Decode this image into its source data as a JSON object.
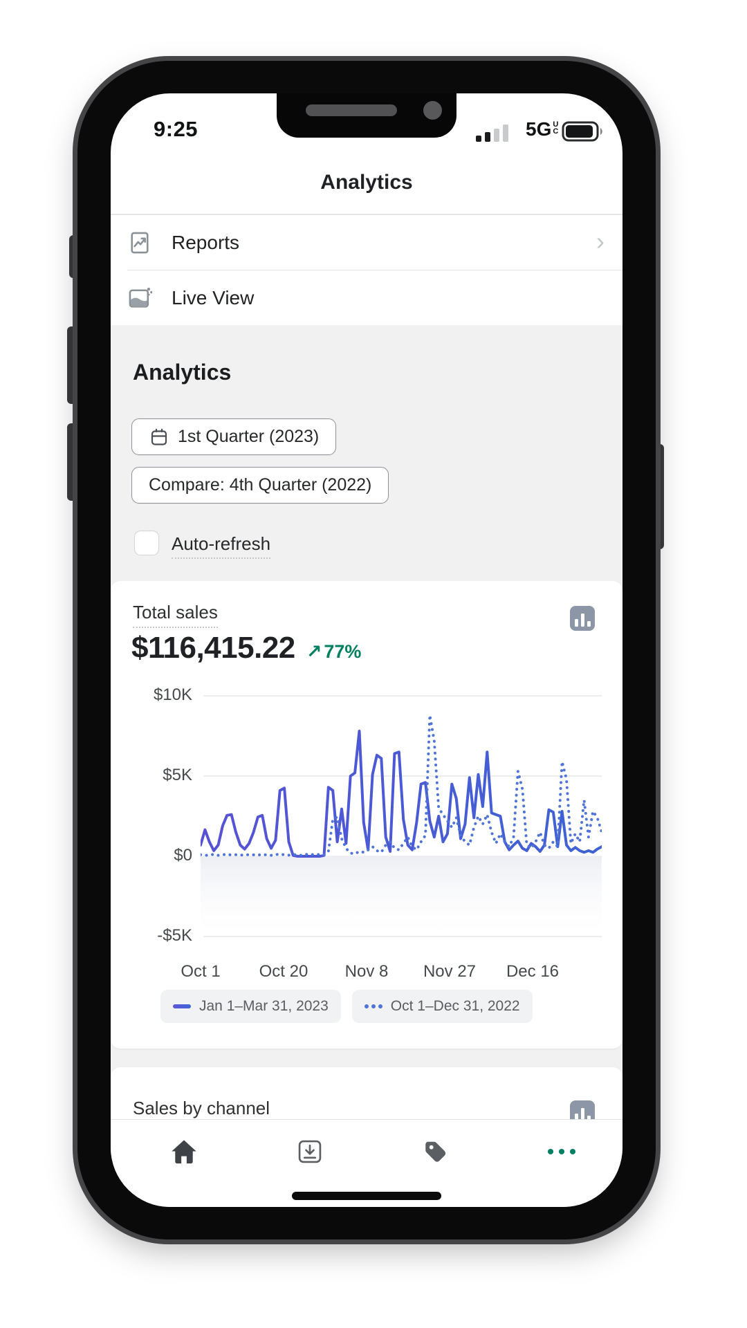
{
  "status_bar": {
    "time": "9:25",
    "network": "5G",
    "network_badge_top": "U",
    "network_badge_bottom": "C"
  },
  "header": {
    "title": "Analytics"
  },
  "menu": {
    "items": [
      {
        "label": "Reports",
        "icon": "reports-icon",
        "has_chevron": true
      },
      {
        "label": "Live View",
        "icon": "live-view-icon",
        "has_chevron": false
      }
    ]
  },
  "analytics_section": {
    "heading": "Analytics",
    "date_range_button": "1st Quarter (2023)",
    "compare_button": "Compare: 4th Quarter (2022)",
    "auto_refresh_label": "Auto-refresh",
    "auto_refresh_checked": false
  },
  "total_sales_card": {
    "title": "Total sales",
    "value": "$116,415.22",
    "change_percent": "77%",
    "change_direction": "up",
    "change_arrow": "↗"
  },
  "chart_data": {
    "type": "line",
    "title": "Total sales",
    "ylim": [
      -5000,
      10000
    ],
    "ytick_labels": [
      "$10K",
      "$5K",
      "$0",
      "-$5K"
    ],
    "ytick_values": [
      10000,
      5000,
      0,
      -5000
    ],
    "xtick_labels": [
      "Oct 1",
      "Oct 20",
      "Nov 8",
      "Nov 27",
      "Dec 16"
    ],
    "xtick_positions": [
      0,
      19,
      38,
      57,
      76
    ],
    "grid": true,
    "legend_position": "bottom",
    "series": [
      {
        "name": "Jan 1–Mar 31, 2023",
        "style": "solid",
        "color": "#4355CB",
        "values": [
          700,
          1650,
          900,
          350,
          700,
          1900,
          2550,
          2600,
          1500,
          700,
          450,
          800,
          1500,
          2450,
          2550,
          1100,
          500,
          1000,
          4100,
          4250,
          900,
          50,
          0,
          0,
          0,
          0,
          0,
          0,
          50,
          4300,
          4100,
          900,
          2950,
          800,
          5000,
          5200,
          7800,
          2100,
          400,
          5100,
          6300,
          6100,
          1200,
          300,
          6400,
          6500,
          2300,
          700,
          400,
          2100,
          4500,
          4600,
          2200,
          1200,
          2500,
          900,
          1400,
          4500,
          3600,
          1100,
          2000,
          4900,
          2400,
          5100,
          3100,
          6500,
          2700,
          2600,
          2500,
          900,
          400,
          700,
          950,
          500,
          350,
          800,
          600,
          300,
          700,
          2900,
          2750,
          600,
          2800,
          700,
          350,
          550,
          350,
          250,
          350,
          250,
          450,
          600
        ]
      },
      {
        "name": "Oct 1–Dec 31, 2022",
        "style": "dotted",
        "color": "#4F74D8",
        "values": [
          100,
          50,
          80,
          120,
          60,
          90,
          140,
          70,
          100,
          80,
          60,
          110,
          90,
          70,
          120,
          80,
          60,
          100,
          140,
          90,
          70,
          110,
          80,
          60,
          120,
          90,
          140,
          100,
          80,
          300,
          2300,
          2450,
          1100,
          500,
          200,
          150,
          300,
          250,
          400,
          600,
          350,
          250,
          700,
          900,
          500,
          400,
          800,
          1200,
          600,
          400,
          900,
          1300,
          8800,
          7200,
          3000,
          2600,
          2200,
          1800,
          2400,
          1300,
          900,
          700,
          1800,
          2500,
          2000,
          2600,
          1500,
          800,
          1400,
          900,
          600,
          1200,
          5300,
          4200,
          700,
          500,
          900,
          1500,
          700,
          500,
          900,
          600,
          5900,
          4800,
          800,
          1400,
          900,
          3500,
          1200,
          2800,
          2400,
          1500
        ]
      }
    ]
  },
  "partial_card": {
    "title": "Sales by channel"
  },
  "bottom_nav": {
    "items": [
      {
        "icon": "home-icon",
        "name": "home"
      },
      {
        "icon": "orders-icon",
        "name": "orders"
      },
      {
        "icon": "products-tag-icon",
        "name": "products"
      },
      {
        "icon": "more-icon",
        "name": "more",
        "active": true
      }
    ]
  },
  "colors": {
    "accent_green": "#008060",
    "line_2023": "#4355CB",
    "line_2022": "#4F74D8",
    "text_dark": "#202223",
    "text_gray": "#5C5F62",
    "bg_gray": "#F1F1F2",
    "border": "#E1E3E5"
  }
}
